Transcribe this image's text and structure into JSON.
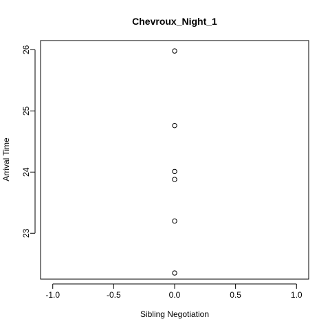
{
  "chart_data": {
    "type": "scatter",
    "title": "Chevroux_Night_1",
    "xlabel": "Sibling Negotiation",
    "ylabel": "Arrival Time",
    "xlim": [
      -1.1,
      1.1
    ],
    "ylim": [
      22.25,
      26.15
    ],
    "xticks": [
      -1.0,
      -0.5,
      0.0,
      0.5,
      1.0
    ],
    "xtick_labels": [
      "-1.0",
      "-0.5",
      "0.0",
      "0.5",
      "1.0"
    ],
    "yticks": [
      23,
      24,
      25,
      26
    ],
    "ytick_labels": [
      "23",
      "24",
      "25",
      "26"
    ],
    "grid": false,
    "marker": "open-circle",
    "series": [
      {
        "x": [
          0,
          0,
          0,
          0,
          0,
          0
        ],
        "y": [
          25.98,
          24.76,
          24.01,
          23.88,
          23.2,
          22.35
        ]
      }
    ]
  }
}
